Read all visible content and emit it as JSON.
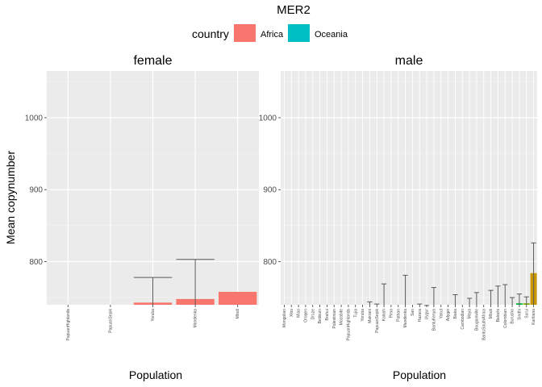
{
  "chart_data": {
    "type": "bar",
    "title": "MER2",
    "ylabel": "Mean copynumber",
    "xlabel": "Population",
    "ylim": [
      740,
      1065
    ],
    "yticks": [
      800,
      900,
      1000
    ],
    "grid": true,
    "legend": {
      "title": "country",
      "position": "top",
      "entries": [
        {
          "name": "Africa",
          "color": "#F8766D"
        },
        {
          "name": "Oceania",
          "color": "#00BFC4"
        }
      ]
    },
    "panels": [
      {
        "name": "female",
        "categories": [
          "PapuanHighlands",
          "PapuanSepik",
          "Yoruba",
          "Mandenka",
          "Mbuti"
        ],
        "bars": [
          {
            "category": "PapuanHighlands",
            "value": null,
            "err_high": null,
            "fill": null
          },
          {
            "category": "PapuanSepik",
            "value": null,
            "err_high": null,
            "fill": null
          },
          {
            "category": "Yoruba",
            "value": 743,
            "err_high": 778,
            "fill": "#F8766D"
          },
          {
            "category": "Mandenka",
            "value": 748,
            "err_high": 803,
            "fill": "#F8766D"
          },
          {
            "category": "Mbuti",
            "value": 758,
            "err_high": null,
            "fill": "#F8766D"
          }
        ]
      },
      {
        "name": "male",
        "categories": [
          "Mongolian",
          "Xibo",
          "Miao",
          "Oroqen",
          "Druze",
          "Bedouin",
          "Brahui",
          "Palestinian",
          "Mozabite",
          "PapuanHighlands",
          "Tujia",
          "Yoruba",
          "Makrani",
          "PapuanSepik",
          "Kalash",
          "Pima",
          "Pathan",
          "Mandenka",
          "San",
          "Hazara",
          "Uygur",
          "BantuKenya",
          "Yakut",
          "Adygei",
          "Biaka",
          "Cambodian",
          "Maya",
          "Bougainville",
          "BantuSouthAfrica",
          "Mbuti",
          "Balochi",
          "Colombian",
          "Burusho",
          "Sindhi",
          "Surui",
          "Karitiana"
        ],
        "bars": [
          {
            "category": "Makrani",
            "value": null,
            "err_high": 744,
            "fill": null
          },
          {
            "category": "PapuanSepik",
            "value": null,
            "err_high": 741,
            "fill": null
          },
          {
            "category": "Kalash",
            "value": null,
            "err_high": 769,
            "fill": null
          },
          {
            "category": "Mandenka",
            "value": null,
            "err_high": 781,
            "fill": null
          },
          {
            "category": "Hazara",
            "value": null,
            "err_high": 741,
            "fill": null
          },
          {
            "category": "Uygur",
            "value": null,
            "err_high": 739,
            "fill": null
          },
          {
            "category": "BantuKenya",
            "value": null,
            "err_high": 764,
            "fill": null
          },
          {
            "category": "Biaka",
            "value": null,
            "err_high": 754,
            "fill": null
          },
          {
            "category": "Maya",
            "value": null,
            "err_high": 749,
            "fill": null
          },
          {
            "category": "Bougainville",
            "value": null,
            "err_high": 757,
            "fill": null
          },
          {
            "category": "Mbuti",
            "value": null,
            "err_high": 760,
            "fill": null
          },
          {
            "category": "Balochi",
            "value": null,
            "err_high": 766,
            "fill": null
          },
          {
            "category": "Colombian",
            "value": null,
            "err_high": 768,
            "fill": null
          },
          {
            "category": "Burusho",
            "value": null,
            "err_high": 750,
            "fill": null
          },
          {
            "category": "Sindhi",
            "value": 742,
            "err_high": 755,
            "fill": "#00BA38"
          },
          {
            "category": "Surui",
            "value": 742,
            "err_high": 751,
            "fill": "#7CAE00"
          },
          {
            "category": "Karitiana",
            "value": 784,
            "err_high": 826,
            "fill": "#C99800"
          }
        ]
      }
    ]
  }
}
